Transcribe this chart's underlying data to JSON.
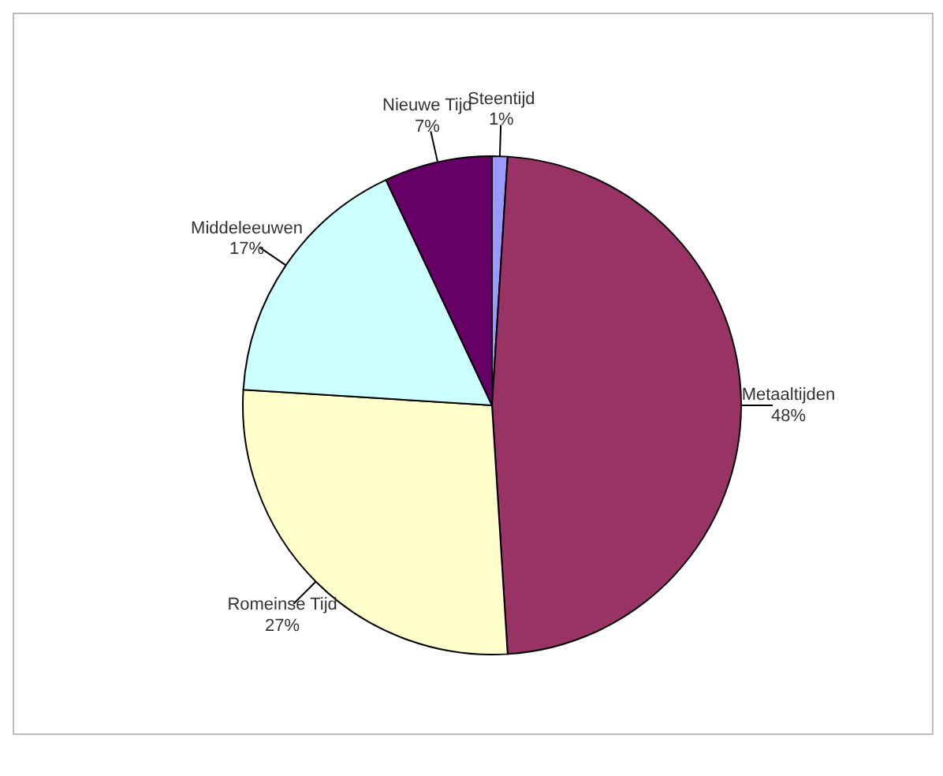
{
  "chart_data": {
    "type": "pie",
    "categories": [
      "Steentijd",
      "Metaaltijden",
      "Romeinse Tijd",
      "Middeleeuwen",
      "Nieuwe Tijd"
    ],
    "values": [
      1,
      48,
      27,
      17,
      7
    ],
    "value_labels": [
      "1%",
      "48%",
      "27%",
      "17%",
      "7%"
    ],
    "colors": [
      "#9999ff",
      "#993366",
      "#ffffcc",
      "#ccffff",
      "#660066"
    ],
    "legend": false
  }
}
